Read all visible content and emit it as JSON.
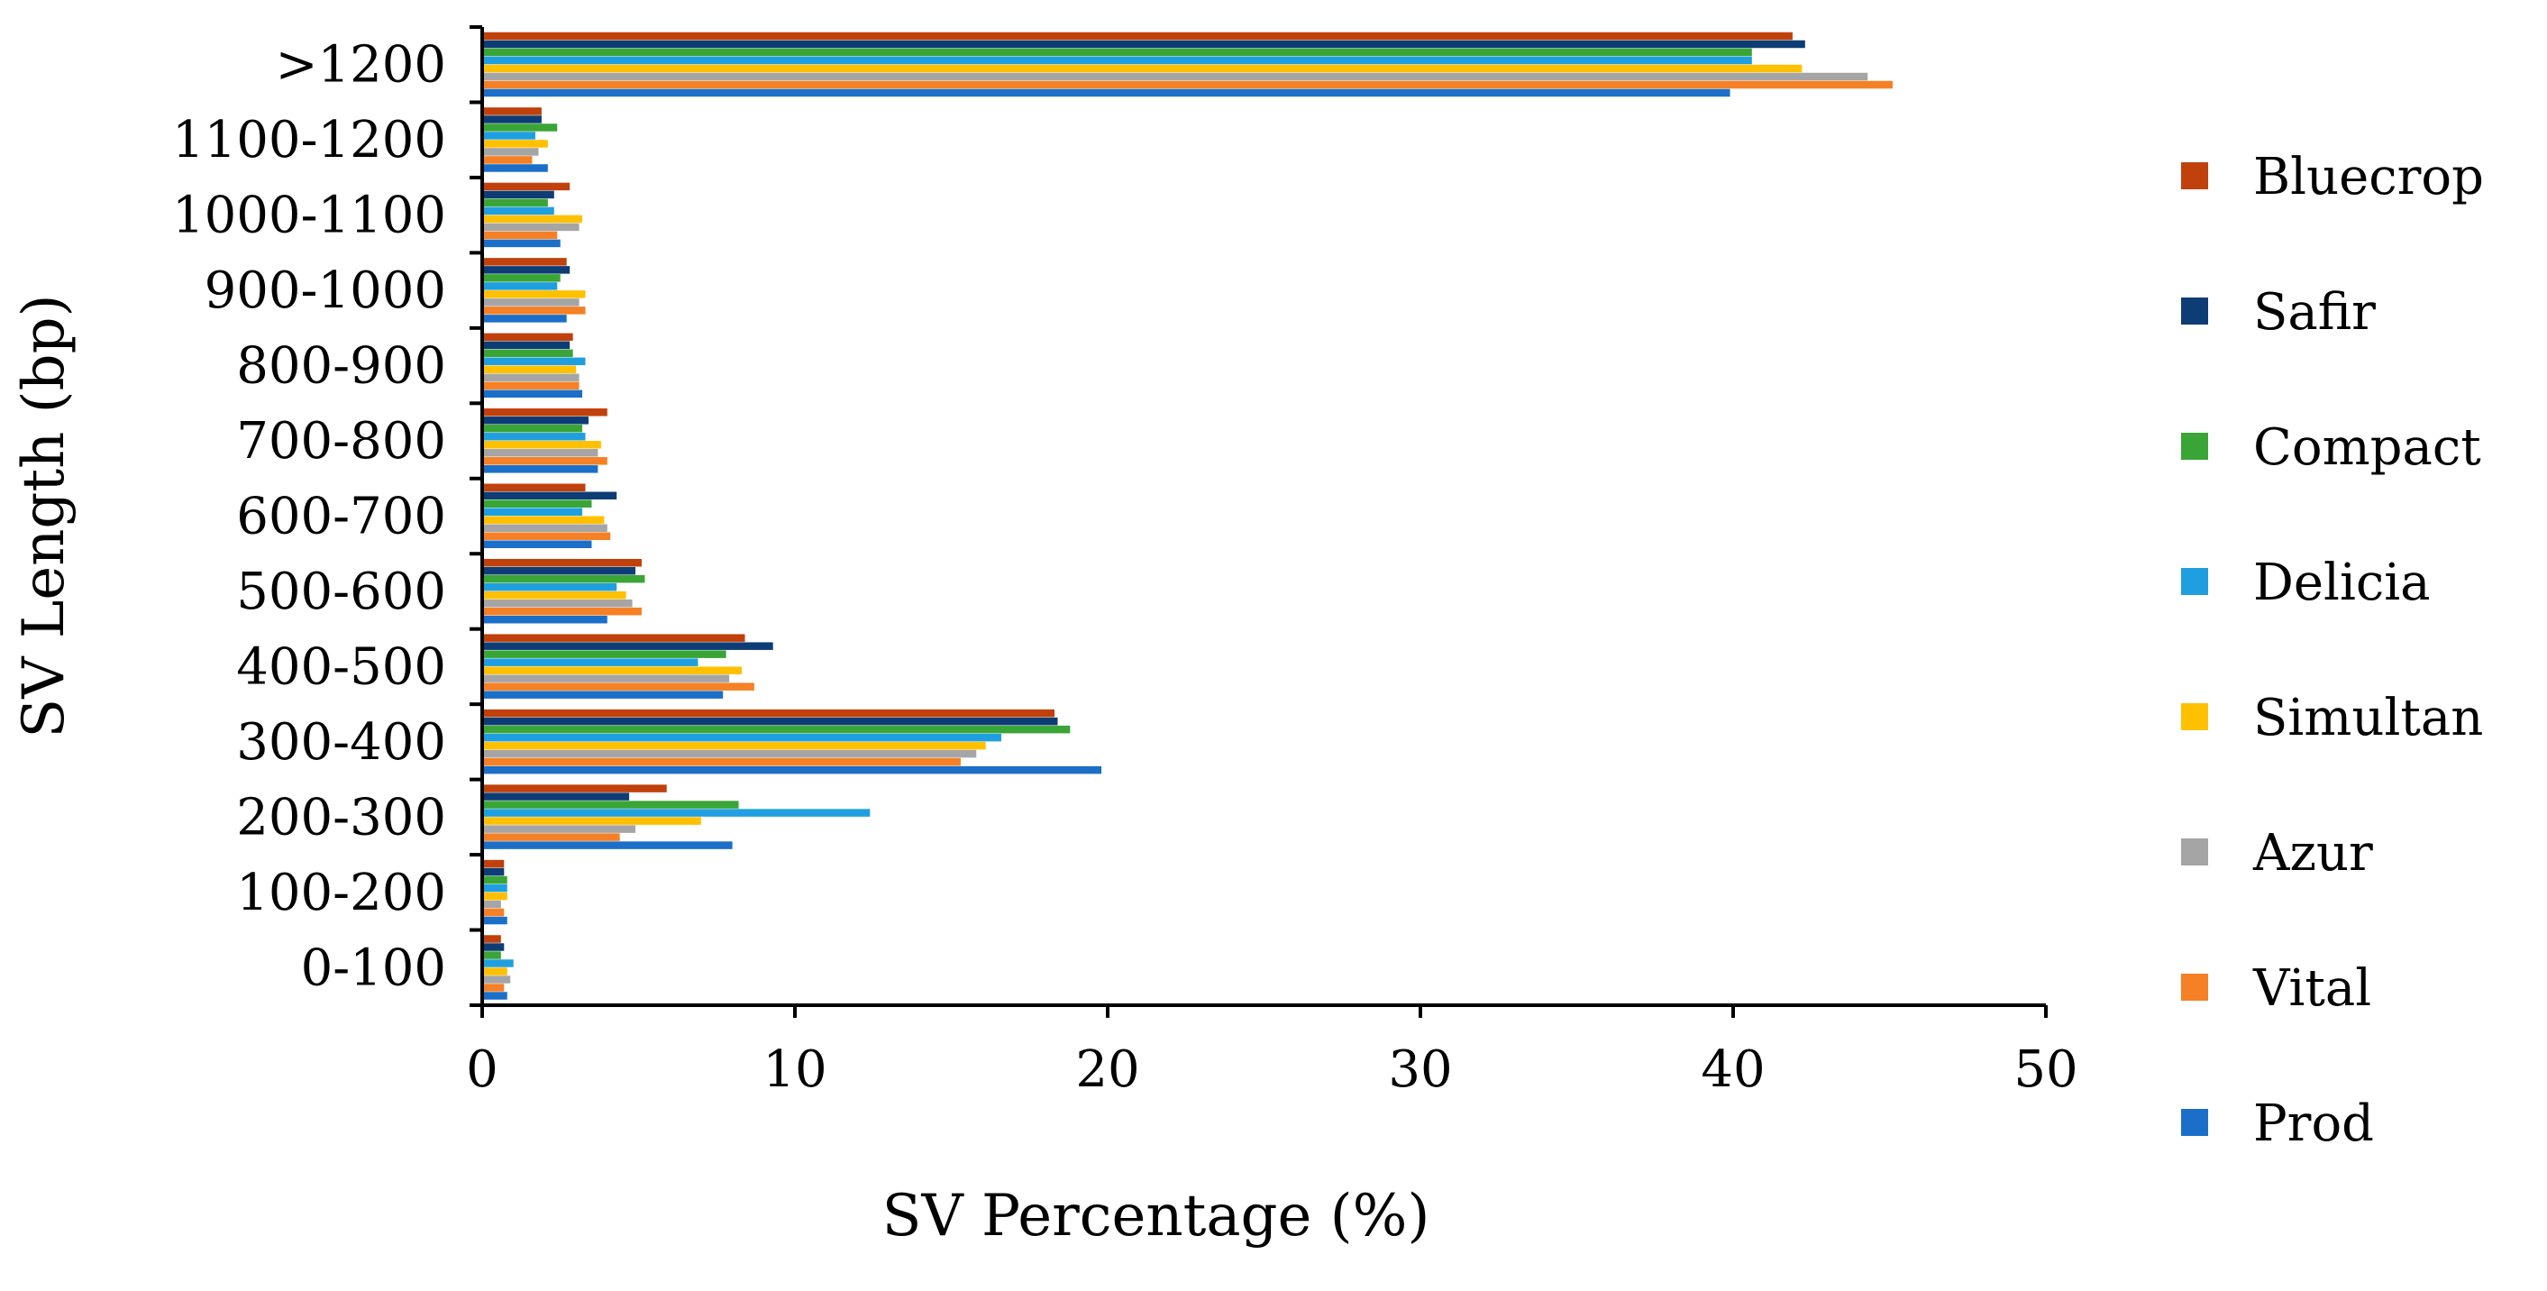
{
  "chart_data": {
    "type": "bar",
    "orientation": "horizontal",
    "title": "",
    "xlabel": "SV Percentage (%)",
    "ylabel": "SV Length (bp)",
    "xlim": [
      0,
      50
    ],
    "xticks": [
      "0",
      "10",
      "20",
      "30",
      "40",
      "50"
    ],
    "grid": false,
    "legend_position": "right",
    "categories": [
      "0-100",
      "100-200",
      "200-300",
      "300-400",
      "400-500",
      "500-600",
      "600-700",
      "700-800",
      "800-900",
      "900-1000",
      "1000-1100",
      "1100-1200",
      ">1200"
    ],
    "series": [
      {
        "name": "Bluecrop",
        "color": "#c0410b",
        "values": [
          0.6,
          0.7,
          5.9,
          18.3,
          8.4,
          5.1,
          3.3,
          4.0,
          2.9,
          2.7,
          2.8,
          1.9,
          41.9
        ]
      },
      {
        "name": "Safir",
        "color": "#0d3d74",
        "values": [
          0.7,
          0.7,
          4.7,
          18.4,
          9.3,
          4.9,
          4.3,
          3.4,
          2.8,
          2.8,
          2.3,
          1.9,
          42.3
        ]
      },
      {
        "name": "Compact",
        "color": "#3aa537",
        "values": [
          0.6,
          0.8,
          8.2,
          18.8,
          7.8,
          5.2,
          3.5,
          3.2,
          2.9,
          2.5,
          2.1,
          2.4,
          40.6
        ]
      },
      {
        "name": "Delicia",
        "color": "#1f9fdf",
        "values": [
          1.0,
          0.8,
          12.4,
          16.6,
          6.9,
          4.3,
          3.2,
          3.3,
          3.3,
          2.4,
          2.3,
          1.7,
          40.6
        ]
      },
      {
        "name": "Simultan",
        "color": "#ffc000",
        "values": [
          0.8,
          0.8,
          7.0,
          16.1,
          8.3,
          4.6,
          3.9,
          3.8,
          3.0,
          3.3,
          3.2,
          2.1,
          42.2
        ]
      },
      {
        "name": "Azur",
        "color": "#a5a5a5",
        "values": [
          0.9,
          0.6,
          4.9,
          15.8,
          7.9,
          4.8,
          4.0,
          3.7,
          3.1,
          3.1,
          3.1,
          1.8,
          44.3
        ]
      },
      {
        "name": "Vital",
        "color": "#f58025",
        "values": [
          0.7,
          0.7,
          4.4,
          15.3,
          8.7,
          5.1,
          4.1,
          4.0,
          3.1,
          3.3,
          2.4,
          1.6,
          45.1
        ]
      },
      {
        "name": "Prod",
        "color": "#1b6fc8",
        "values": [
          0.8,
          0.8,
          8.0,
          19.8,
          7.7,
          4.0,
          3.5,
          3.7,
          3.2,
          2.7,
          2.5,
          2.1,
          39.9
        ]
      }
    ]
  }
}
